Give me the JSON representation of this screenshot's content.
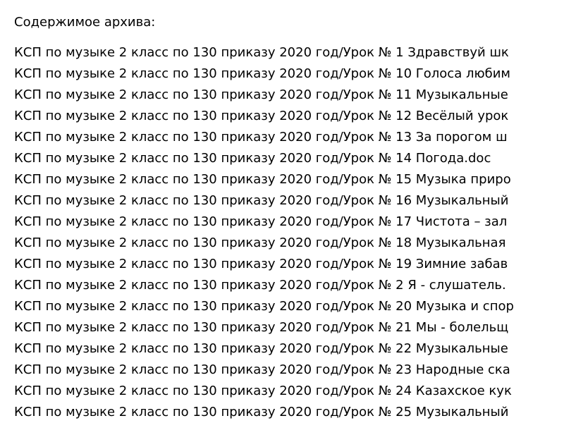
{
  "title": "Содержимое архива:",
  "files": [
    "КСП по музыке 2 класс по 130 приказу 2020 год/Урок № 1 Здравствуй шк",
    "КСП по музыке 2 класс по 130 приказу 2020 год/Урок № 10 Голоса любим",
    "КСП по музыке 2 класс по 130 приказу 2020 год/Урок № 11 Музыкальные",
    "КСП по музыке 2 класс по 130 приказу 2020 год/Урок № 12 Весёлый урок",
    "КСП по музыке 2 класс по 130 приказу 2020 год/Урок № 13 За порогом ш",
    "КСП по музыке 2 класс по 130 приказу 2020 год/Урок № 14 Погода.doc",
    "КСП по музыке 2 класс по 130 приказу 2020 год/Урок № 15 Музыка приро",
    "КСП по музыке 2 класс по 130 приказу 2020 год/Урок № 16 Музыкальный",
    "КСП по музыке 2 класс по 130 приказу 2020 год/Урок № 17 Чистота – зал",
    "КСП по музыке 2 класс по 130 приказу 2020 год/Урок № 18 Музыкальная",
    "КСП по музыке 2 класс по 130 приказу 2020 год/Урок № 19 Зимние забав",
    "КСП по музыке 2 класс по 130 приказу 2020 год/Урок № 2 Я - слушатель.",
    "КСП по музыке 2 класс по 130 приказу 2020 год/Урок № 20 Музыка и спор",
    "КСП по музыке 2 класс по 130 приказу 2020 год/Урок № 21 Мы - болельщ",
    "КСП по музыке 2 класс по 130 приказу 2020 год/Урок № 22 Музыкальные",
    "КСП по музыке 2 класс по 130 приказу 2020 год/Урок № 23 Народные ска",
    "КСП по музыке 2 класс по 130 приказу 2020 год/Урок № 24 Казахское кук",
    "КСП по музыке 2 класс по 130 приказу 2020 год/Урок № 25 Музыкальный"
  ]
}
